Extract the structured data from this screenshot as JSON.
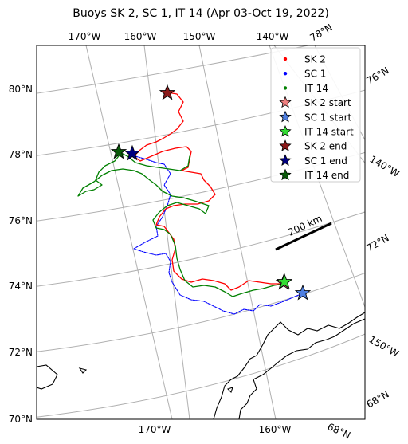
{
  "title": "Buoys SK 2, SC 1, IT 14 (Apr 03-Oct 19, 2022)",
  "lat_labels_left": [
    "80°N",
    "78°N",
    "76°N",
    "74°N",
    "72°N",
    "70°N"
  ],
  "lon_labels_top": [
    "170°W",
    "160°W",
    "150°W",
    "140°W",
    "78°N"
  ],
  "lon_labels_bottom": [
    "170°W",
    "160°W",
    "68°N"
  ],
  "right_labels": [
    "76°N",
    "140°W",
    "72°N",
    "150°W",
    "68°N"
  ],
  "scale_bar": {
    "label": "200 km",
    "length_km": 200
  },
  "colors": {
    "sk2": "#ff0000",
    "sc1": "#0000ff",
    "it14": "#008000",
    "sk2_start": "#f08080",
    "sc1_start": "#4f7fe0",
    "it14_start": "#33dd33",
    "sk2_end": "#8b1a1a",
    "sc1_end": "#000080",
    "it14_end": "#0a5a0a",
    "grid": "#b0b0b0",
    "coast": "#000000"
  },
  "legend": {
    "placement": "top-right",
    "entries": [
      {
        "label": "SK 2",
        "marker": "dot",
        "color": "#ff0000"
      },
      {
        "label": "SC 1",
        "marker": "dot",
        "color": "#0000ff"
      },
      {
        "label": "IT 14",
        "marker": "dot",
        "color": "#008000"
      },
      {
        "label": "SK 2 start",
        "marker": "star",
        "color": "#f08080"
      },
      {
        "label": "SC 1 start",
        "marker": "star",
        "color": "#4f7fe0"
      },
      {
        "label": "IT 14 start",
        "marker": "star",
        "color": "#33dd33"
      },
      {
        "label": "SK 2 end",
        "marker": "star",
        "color": "#8b1a1a"
      },
      {
        "label": "SC 1 end",
        "marker": "star",
        "color": "#000080"
      },
      {
        "label": "IT 14 end",
        "marker": "star",
        "color": "#0a5a0a"
      }
    ]
  }
}
